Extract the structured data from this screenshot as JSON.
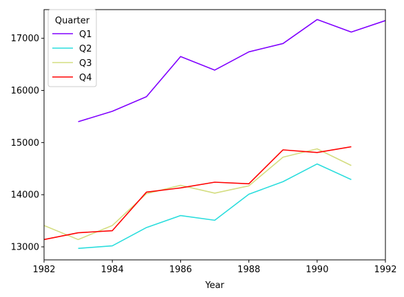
{
  "chart_data": {
    "type": "line",
    "xlabel": "Year",
    "ylabel": "",
    "xlim": [
      1982,
      1992
    ],
    "ylim": [
      12750,
      17550
    ],
    "x_ticks": [
      1982,
      1984,
      1986,
      1988,
      1990,
      1992
    ],
    "y_ticks": [
      13000,
      14000,
      15000,
      16000,
      17000
    ],
    "grid": false,
    "legend": {
      "title": "Quarter",
      "position": "top-left"
    },
    "series": [
      {
        "name": "Q1",
        "color": "#8000ff",
        "x": [
          1983,
          1984,
          1985,
          1986,
          1987,
          1988,
          1989,
          1990,
          1991,
          1992
        ],
        "values": [
          15400,
          15600,
          15880,
          16650,
          16390,
          16740,
          16900,
          17360,
          17120,
          17340
        ]
      },
      {
        "name": "Q2",
        "color": "#2adddd",
        "x": [
          1983,
          1984,
          1985,
          1986,
          1987,
          1988,
          1989,
          1990,
          1991
        ],
        "values": [
          12970,
          13020,
          13370,
          13600,
          13510,
          14010,
          14250,
          14590,
          14290
        ]
      },
      {
        "name": "Q3",
        "color": "#d4dd80",
        "x": [
          1982,
          1983,
          1984,
          1985,
          1986,
          1987,
          1988,
          1989,
          1990,
          1991
        ],
        "values": [
          13410,
          13140,
          13410,
          14020,
          14180,
          14030,
          14170,
          14720,
          14880,
          14560
        ]
      },
      {
        "name": "Q4",
        "color": "#ff0000",
        "x": [
          1982,
          1983,
          1984,
          1985,
          1986,
          1987,
          1988,
          1989,
          1990,
          1991
        ],
        "values": [
          13140,
          13270,
          13310,
          14050,
          14130,
          14240,
          14210,
          14860,
          14810,
          14920
        ]
      }
    ]
  }
}
